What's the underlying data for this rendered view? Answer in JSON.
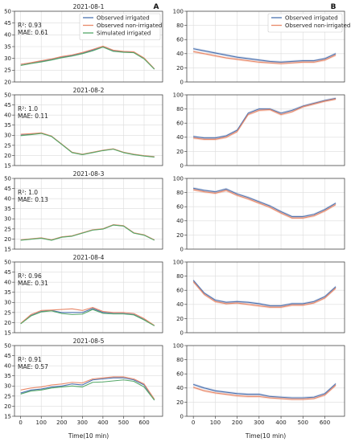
{
  "figure": {
    "panel_letters": [
      "A",
      "B"
    ],
    "xlabel": "Time(10 min)",
    "legend_A": [
      "Observed irrigated",
      "Observed non-irrigated",
      "Simulated irrigated"
    ],
    "legend_B": [
      "Observed irrigated",
      "Observed non-irrigated"
    ],
    "colors": {
      "observed_irrigated": "#4c72b0",
      "observed_non_irrigated": "#e8896a",
      "simulated_irrigated": "#55a868"
    }
  },
  "chart_data": [
    {
      "type": "line",
      "panel": "A",
      "title": "2021-08-1",
      "annotation": [
        "R²: 0.93",
        "MAE: 0.61"
      ],
      "xlim": [
        -30,
        690
      ],
      "ylim": [
        20,
        50
      ],
      "xticks": [
        0,
        100,
        200,
        300,
        400,
        500,
        600
      ],
      "yticks": [
        20,
        25,
        30,
        35,
        40,
        45,
        50
      ],
      "x": [
        0,
        50,
        100,
        150,
        200,
        250,
        300,
        350,
        400,
        450,
        500,
        550,
        600,
        650
      ],
      "series": [
        {
          "name": "Observed irrigated",
          "values": [
            27.5,
            28,
            28.8,
            29.5,
            30.5,
            31.2,
            32.2,
            33.5,
            35,
            33.2,
            32.8,
            32.5,
            30,
            25.5
          ]
        },
        {
          "name": "Observed non-irrigated",
          "values": [
            27.5,
            28.2,
            29,
            29.8,
            30.8,
            31.5,
            32.5,
            33.8,
            35.2,
            33.5,
            33,
            32.8,
            30.2,
            25.6
          ]
        },
        {
          "name": "Simulated irrigated",
          "values": [
            27,
            27.8,
            28.5,
            29.3,
            30.3,
            31,
            32,
            33.2,
            34.8,
            33,
            32.6,
            32.4,
            29.8,
            25.4
          ]
        }
      ]
    },
    {
      "type": "line",
      "panel": "A",
      "title": "2021-08-2",
      "annotation": [
        "R²: 1.0",
        "MAE: 0.11"
      ],
      "xlim": [
        -30,
        690
      ],
      "ylim": [
        15,
        50
      ],
      "xticks": [
        0,
        100,
        200,
        300,
        400,
        500,
        600
      ],
      "yticks": [
        15,
        20,
        25,
        30,
        35,
        40,
        45,
        50
      ],
      "x": [
        0,
        50,
        100,
        150,
        200,
        250,
        300,
        350,
        400,
        450,
        500,
        550,
        600,
        650
      ],
      "series": [
        {
          "name": "Observed irrigated",
          "values": [
            30,
            30.5,
            31,
            29.5,
            25.5,
            21.5,
            20.5,
            21.5,
            22.5,
            23.2,
            21.5,
            20.5,
            19.8,
            19.3
          ]
        },
        {
          "name": "Observed non-irrigated",
          "values": [
            30.5,
            30.8,
            31.2,
            29.6,
            25.6,
            21.6,
            20.6,
            21.6,
            22.6,
            23.3,
            21.6,
            20.6,
            19.9,
            19.4
          ]
        },
        {
          "name": "Simulated irrigated",
          "values": [
            29.8,
            30.3,
            30.9,
            29.4,
            25.4,
            21.4,
            20.4,
            21.4,
            22.4,
            23.1,
            21.4,
            20.4,
            19.7,
            19.2
          ]
        }
      ]
    },
    {
      "type": "line",
      "panel": "A",
      "title": "2021-08-3",
      "annotation": [
        "R²: 1.0",
        "MAE: 0.13"
      ],
      "xlim": [
        -30,
        690
      ],
      "ylim": [
        15,
        50
      ],
      "xticks": [
        0,
        100,
        200,
        300,
        400,
        500,
        600
      ],
      "yticks": [
        15,
        20,
        25,
        30,
        35,
        40,
        45,
        50
      ],
      "x": [
        0,
        50,
        100,
        150,
        200,
        250,
        300,
        350,
        400,
        450,
        500,
        550,
        600,
        650
      ],
      "series": [
        {
          "name": "Observed irrigated",
          "values": [
            19.5,
            20,
            20.5,
            19.5,
            21,
            21.5,
            23,
            24.5,
            25,
            27,
            26.5,
            23,
            22,
            19.5
          ]
        },
        {
          "name": "Observed non-irrigated",
          "values": [
            19.6,
            20.1,
            20.6,
            19.6,
            21.1,
            21.6,
            23.1,
            24.6,
            25.1,
            27.1,
            26.6,
            23.1,
            22.1,
            19.6
          ]
        },
        {
          "name": "Simulated irrigated",
          "values": [
            19.4,
            19.9,
            20.4,
            19.4,
            20.9,
            21.4,
            22.9,
            24.4,
            24.9,
            26.9,
            26.4,
            22.9,
            21.9,
            19.4
          ]
        }
      ]
    },
    {
      "type": "line",
      "panel": "A",
      "title": "2021-08-4",
      "annotation": [
        "R²: 0.96",
        "MAE: 0.31"
      ],
      "xlim": [
        -30,
        690
      ],
      "ylim": [
        15,
        50
      ],
      "xticks": [
        0,
        100,
        200,
        300,
        400,
        500,
        600
      ],
      "yticks": [
        15,
        20,
        25,
        30,
        35,
        40,
        45,
        50
      ],
      "x": [
        0,
        50,
        100,
        150,
        200,
        250,
        300,
        350,
        400,
        450,
        500,
        550,
        600,
        650
      ],
      "series": [
        {
          "name": "Observed irrigated",
          "values": [
            19.5,
            23.5,
            25.5,
            26,
            25,
            25,
            25,
            27,
            25,
            24.5,
            24.5,
            24,
            21.5,
            18.5
          ]
        },
        {
          "name": "Observed non-irrigated",
          "values": [
            19.6,
            24,
            26,
            26.2,
            26.5,
            26.8,
            26,
            27.5,
            25.5,
            25,
            25,
            24.5,
            22,
            18.6
          ]
        },
        {
          "name": "Simulated irrigated",
          "values": [
            19.4,
            23.3,
            25.3,
            25.8,
            24.5,
            24,
            24.2,
            26.5,
            24.6,
            24.3,
            24.3,
            23.8,
            21.3,
            18.4
          ]
        }
      ]
    },
    {
      "type": "line",
      "panel": "A",
      "title": "2021-08-5",
      "annotation": [
        "R²: 0.91",
        "MAE: 0.57"
      ],
      "xlim": [
        -30,
        690
      ],
      "ylim": [
        15,
        50
      ],
      "xticks": [
        0,
        100,
        200,
        300,
        400,
        500,
        600
      ],
      "yticks": [
        15,
        20,
        25,
        30,
        35,
        40,
        45,
        50
      ],
      "x": [
        0,
        50,
        100,
        150,
        200,
        250,
        300,
        350,
        400,
        450,
        500,
        550,
        600,
        650
      ],
      "series": [
        {
          "name": "Observed irrigated",
          "values": [
            26.5,
            28,
            28.5,
            29.5,
            30,
            31,
            30.5,
            33,
            33.5,
            34,
            34,
            33,
            30.5,
            23
          ]
        },
        {
          "name": "Observed non-irrigated",
          "values": [
            28,
            29,
            29.5,
            30.5,
            31,
            31.8,
            31.5,
            33.5,
            34,
            34.5,
            34.5,
            33.5,
            31,
            23.5
          ]
        },
        {
          "name": "Simulated irrigated",
          "values": [
            26,
            27.5,
            28,
            29,
            29.5,
            30,
            29.5,
            31.8,
            32,
            32.5,
            33,
            32.3,
            29.5,
            23
          ]
        }
      ]
    },
    {
      "type": "line",
      "panel": "B",
      "title": "",
      "xlim": [
        -30,
        690
      ],
      "ylim": [
        0,
        100
      ],
      "xticks": [
        0,
        100,
        200,
        300,
        400,
        500,
        600
      ],
      "yticks": [
        0,
        20,
        40,
        60,
        80,
        100
      ],
      "x": [
        0,
        50,
        100,
        150,
        200,
        250,
        300,
        350,
        400,
        450,
        500,
        550,
        600,
        650
      ],
      "series": [
        {
          "name": "Observed irrigated",
          "values": [
            47,
            44,
            41,
            38,
            35,
            33,
            31,
            29,
            28,
            29,
            30,
            30,
            33,
            40
          ]
        },
        {
          "name": "Observed non-irrigated",
          "values": [
            43,
            40,
            37,
            34,
            32,
            30,
            28,
            27,
            26,
            27,
            28,
            28,
            31,
            38
          ]
        }
      ]
    },
    {
      "type": "line",
      "panel": "B",
      "title": "",
      "xlim": [
        -30,
        690
      ],
      "ylim": [
        0,
        100
      ],
      "xticks": [
        0,
        100,
        200,
        300,
        400,
        500,
        600
      ],
      "yticks": [
        0,
        20,
        40,
        60,
        80,
        100
      ],
      "x": [
        0,
        50,
        100,
        150,
        200,
        250,
        300,
        350,
        400,
        450,
        500,
        550,
        600,
        650
      ],
      "series": [
        {
          "name": "Observed irrigated",
          "values": [
            41,
            39,
            39,
            42,
            50,
            74,
            80,
            80,
            74,
            78,
            84,
            88,
            92,
            95
          ]
        },
        {
          "name": "Observed non-irrigated",
          "values": [
            39,
            37,
            37,
            40,
            48,
            72,
            78,
            79,
            72,
            76,
            83,
            87,
            91,
            94
          ]
        }
      ]
    },
    {
      "type": "line",
      "panel": "B",
      "title": "",
      "xlim": [
        -30,
        690
      ],
      "ylim": [
        0,
        100
      ],
      "xticks": [
        0,
        100,
        200,
        300,
        400,
        500,
        600
      ],
      "yticks": [
        0,
        20,
        40,
        60,
        80,
        100
      ],
      "x": [
        0,
        50,
        100,
        150,
        200,
        250,
        300,
        350,
        400,
        450,
        500,
        550,
        600,
        650
      ],
      "series": [
        {
          "name": "Observed irrigated",
          "values": [
            86,
            83,
            81,
            85,
            78,
            73,
            67,
            61,
            53,
            46,
            46,
            49,
            56,
            65
          ]
        },
        {
          "name": "Observed non-irrigated",
          "values": [
            84,
            81,
            79,
            83,
            76,
            71,
            65,
            59,
            51,
            44,
            44,
            47,
            54,
            63
          ]
        }
      ]
    },
    {
      "type": "line",
      "panel": "B",
      "title": "",
      "xlim": [
        -30,
        690
      ],
      "ylim": [
        0,
        100
      ],
      "xticks": [
        0,
        100,
        200,
        300,
        400,
        500,
        600
      ],
      "yticks": [
        0,
        20,
        40,
        60,
        80,
        100
      ],
      "x": [
        0,
        50,
        100,
        150,
        200,
        250,
        300,
        350,
        400,
        450,
        500,
        550,
        600,
        650
      ],
      "series": [
        {
          "name": "Observed irrigated",
          "values": [
            74,
            56,
            46,
            43,
            44,
            43,
            41,
            38,
            38,
            41,
            41,
            44,
            51,
            65
          ]
        },
        {
          "name": "Observed non-irrigated",
          "values": [
            72,
            54,
            44,
            41,
            42,
            40,
            38,
            36,
            36,
            39,
            39,
            42,
            49,
            63
          ]
        }
      ]
    },
    {
      "type": "line",
      "panel": "B",
      "title": "",
      "xlim": [
        -30,
        690
      ],
      "ylim": [
        0,
        100
      ],
      "xticks": [
        0,
        100,
        200,
        300,
        400,
        500,
        600
      ],
      "yticks": [
        0,
        20,
        40,
        60,
        80,
        100
      ],
      "x": [
        0,
        50,
        100,
        150,
        200,
        250,
        300,
        350,
        400,
        450,
        500,
        550,
        600,
        650
      ],
      "series": [
        {
          "name": "Observed irrigated",
          "values": [
            45,
            40,
            36,
            34,
            32,
            31,
            31,
            28,
            27,
            26,
            26,
            27,
            32,
            46
          ]
        },
        {
          "name": "Observed non-irrigated",
          "values": [
            41,
            36,
            33,
            31,
            29,
            28,
            28,
            26,
            25,
            24,
            24,
            25,
            30,
            44
          ]
        }
      ]
    }
  ]
}
